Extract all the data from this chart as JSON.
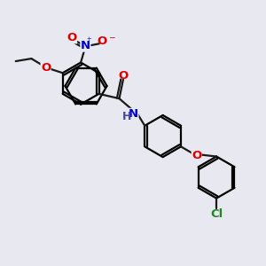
{
  "bg_color": "#e8e8f0",
  "bond_color": "#1a1a1a",
  "atom_colors": {
    "O": "#dd0000",
    "N": "#0000cc",
    "Cl": "#228822",
    "H": "#4444aa"
  },
  "lw": 1.6,
  "r": 0.8
}
